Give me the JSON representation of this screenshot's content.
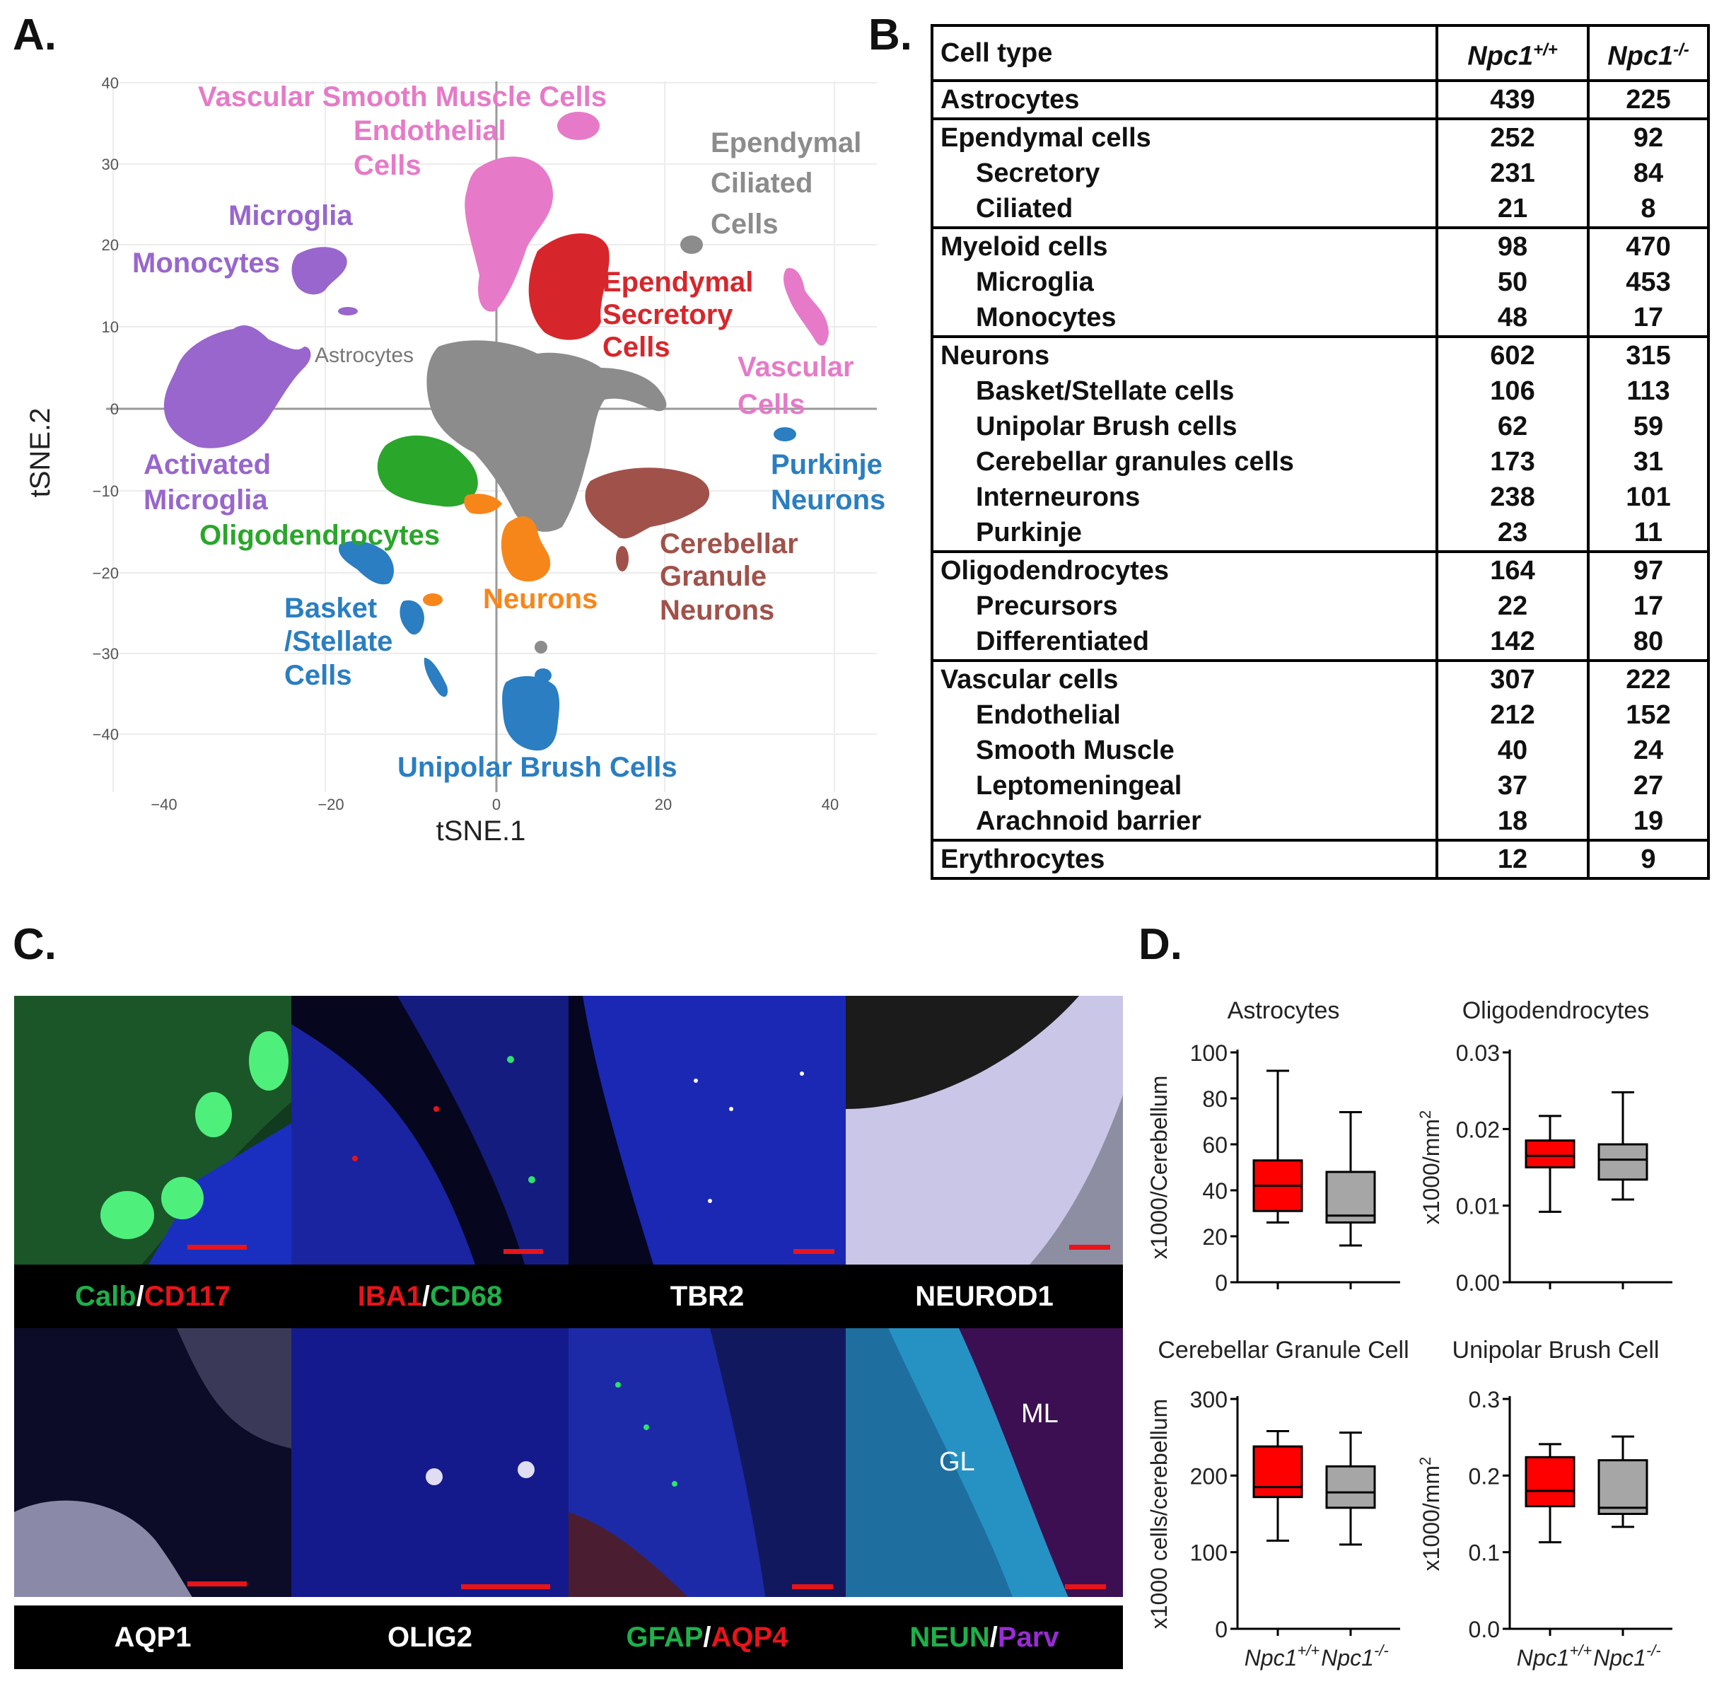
{
  "panels": {
    "a": "A.",
    "b": "B.",
    "c": "C.",
    "d": "D."
  },
  "panel_a": {
    "xlabel": "tSNE.1",
    "ylabel": "tSNE.2",
    "xticks": [
      "−40",
      "−20",
      "0",
      "20",
      "40"
    ],
    "yticks": [
      "40",
      "30",
      "20",
      "10",
      "0",
      "−10",
      "−20",
      "−30",
      "−40"
    ],
    "cluster_labels": {
      "vsmc": "Vascular Smooth Muscle Cells",
      "endothelial_1": "Endothelial",
      "endothelial_2": "Cells",
      "ependymal_ciliated_1": "Ependymal",
      "ependymal_ciliated_2": "Ciliated",
      "ependymal_ciliated_3": "Cells",
      "microglia": "Microglia",
      "monocytes": "Monocytes",
      "ependymal_secretory_1": "Ependymal",
      "ependymal_secretory_2": "Secretory",
      "ependymal_secretory_3": "Cells",
      "astrocytes": "Astrocytes",
      "vascular_1": "Vascular",
      "vascular_2": "Cells",
      "purkinje_1": "Purkinje",
      "purkinje_2": "Neurons",
      "activated_microglia_1": "Activated",
      "activated_microglia_2": "Microglia",
      "oligodendrocytes": "Oligodendrocytes",
      "cgn_1": "Cerebellar",
      "cgn_2": "Granule",
      "cgn_3": "Neurons",
      "basket_1": "Basket",
      "basket_2": "/Stellate",
      "basket_3": "Cells",
      "neurons": "Neurons",
      "ubc": "Unipolar Brush Cells"
    },
    "colors": {
      "pink": "#e67ac8",
      "gray": "#8c8c8c",
      "red": "#d7262b",
      "purple": "#9866cc",
      "green": "#2aa62a",
      "orange": "#f7861a",
      "brown": "#a0524a",
      "blue": "#2a7ec1"
    }
  },
  "table_b": {
    "header": {
      "cell_type": "Cell type",
      "wt": "Npc1",
      "wt_sup": "+/+",
      "ko": "Npc1",
      "ko_sup": "-/-"
    },
    "rows": [
      {
        "name": "Astrocytes",
        "wt": "439",
        "ko": "225",
        "sub": false,
        "group_start": true
      },
      {
        "name": "Ependymal cells",
        "wt": "252",
        "ko": "92",
        "sub": false,
        "group_start": true
      },
      {
        "name": "Secretory",
        "wt": "231",
        "ko": "84",
        "sub": true,
        "group_start": false
      },
      {
        "name": "Ciliated",
        "wt": "21",
        "ko": "8",
        "sub": true,
        "group_start": false
      },
      {
        "name": "Myeloid cells",
        "wt": "98",
        "ko": "470",
        "sub": false,
        "group_start": true
      },
      {
        "name": "Microglia",
        "wt": "50",
        "ko": "453",
        "sub": true,
        "group_start": false
      },
      {
        "name": "Monocytes",
        "wt": "48",
        "ko": "17",
        "sub": true,
        "group_start": false
      },
      {
        "name": "Neurons",
        "wt": "602",
        "ko": "315",
        "sub": false,
        "group_start": true
      },
      {
        "name": "Basket/Stellate cells",
        "wt": "106",
        "ko": "113",
        "sub": true,
        "group_start": false
      },
      {
        "name": "Unipolar Brush cells",
        "wt": "62",
        "ko": "59",
        "sub": true,
        "group_start": false
      },
      {
        "name": "Cerebellar granules cells",
        "wt": "173",
        "ko": "31",
        "sub": true,
        "group_start": false
      },
      {
        "name": "Interneurons",
        "wt": "238",
        "ko": "101",
        "sub": true,
        "group_start": false
      },
      {
        "name": "Purkinje",
        "wt": "23",
        "ko": "11",
        "sub": true,
        "group_start": false
      },
      {
        "name": "Oligodendrocytes",
        "wt": "164",
        "ko": "97",
        "sub": false,
        "group_start": true
      },
      {
        "name": "Precursors",
        "wt": "22",
        "ko": "17",
        "sub": true,
        "group_start": false
      },
      {
        "name": "Differentiated",
        "wt": "142",
        "ko": "80",
        "sub": true,
        "group_start": false
      },
      {
        "name": "Vascular cells",
        "wt": "307",
        "ko": "222",
        "sub": false,
        "group_start": true
      },
      {
        "name": "Endothelial",
        "wt": "212",
        "ko": "152",
        "sub": true,
        "group_start": false
      },
      {
        "name": "Smooth Muscle",
        "wt": "40",
        "ko": "24",
        "sub": true,
        "group_start": false
      },
      {
        "name": "Leptomeningeal",
        "wt": "37",
        "ko": "27",
        "sub": true,
        "group_start": false
      },
      {
        "name": "Arachnoid barrier",
        "wt": "18",
        "ko": "19",
        "sub": true,
        "group_start": false
      },
      {
        "name": "Erythrocytes",
        "wt": "12",
        "ko": "9",
        "sub": false,
        "group_start": true
      }
    ]
  },
  "panel_c": {
    "labels": {
      "calb": "Calb",
      "cd117": "CD117",
      "iba1": "IBA1",
      "cd68": "CD68",
      "tbr2": "TBR2",
      "neurod1": "NEUROD1",
      "aqp1": "AQP1",
      "olig2": "OLIG2",
      "gfap": "GFAP",
      "aqp4": "AQP4",
      "neun": "NEUN",
      "parv": "Parv",
      "slash": "/"
    },
    "annotations": {
      "gl": "GL",
      "ml": "ML"
    }
  },
  "chart_data": [
    {
      "type": "box",
      "title": "Astrocytes",
      "ylabel": "x1000/Cerebellum",
      "categories": [
        "Npc1+/+",
        "Npc1-/-"
      ],
      "ylim": [
        0,
        100
      ],
      "yticks": [
        "0",
        "20",
        "40",
        "60",
        "80",
        "100"
      ],
      "boxes": [
        {
          "min": 26,
          "q1": 31,
          "median": 42,
          "q3": 53,
          "max": 92,
          "color": "#ff0000"
        },
        {
          "min": 16,
          "q1": 26,
          "median": 29,
          "q3": 48,
          "max": 74,
          "color": "#a6a6a6"
        }
      ]
    },
    {
      "type": "box",
      "title": "Oligodendrocytes",
      "ylabel": "x1000/mm",
      "ylabel_sup": "2",
      "categories": [
        "Npc1+/+",
        "Npc1-/-"
      ],
      "ylim": [
        0,
        0.03
      ],
      "yticks": [
        "0.00",
        "0.01",
        "0.02",
        "0.03"
      ],
      "boxes": [
        {
          "min": 0.0092,
          "q1": 0.015,
          "median": 0.0165,
          "q3": 0.0185,
          "max": 0.0217,
          "color": "#ff0000"
        },
        {
          "min": 0.0108,
          "q1": 0.0134,
          "median": 0.016,
          "q3": 0.018,
          "max": 0.0248,
          "color": "#a6a6a6"
        }
      ]
    },
    {
      "type": "box",
      "title": "Cerebellar Granule Cell",
      "ylabel": "x1000 cells/cerebellum",
      "categories": [
        "Npc1+/+",
        "Npc1-/-"
      ],
      "ylim": [
        0,
        300
      ],
      "yticks": [
        "0",
        "100",
        "200",
        "300"
      ],
      "boxes": [
        {
          "min": 115,
          "q1": 172,
          "median": 185,
          "q3": 238,
          "max": 258,
          "color": "#ff0000"
        },
        {
          "min": 110,
          "q1": 158,
          "median": 178,
          "q3": 212,
          "max": 256,
          "color": "#a6a6a6"
        }
      ]
    },
    {
      "type": "box",
      "title": "Unipolar Brush Cell",
      "ylabel": "x1000/mm",
      "ylabel_sup": "2",
      "categories": [
        "Npc1+/+",
        "Npc1-/-"
      ],
      "ylim": [
        0,
        0.3
      ],
      "yticks": [
        "0.0",
        "0.1",
        "0.2",
        "0.3"
      ],
      "boxes": [
        {
          "min": 0.113,
          "q1": 0.16,
          "median": 0.18,
          "q3": 0.224,
          "max": 0.241,
          "color": "#ff0000"
        },
        {
          "min": 0.133,
          "q1": 0.15,
          "median": 0.158,
          "q3": 0.22,
          "max": 0.251,
          "color": "#a6a6a6"
        }
      ]
    }
  ],
  "panel_d": {
    "x_wt": "Npc1",
    "x_wt_sup": "+/+",
    "x_ko": "Npc1",
    "x_ko_sup": "-/-"
  }
}
